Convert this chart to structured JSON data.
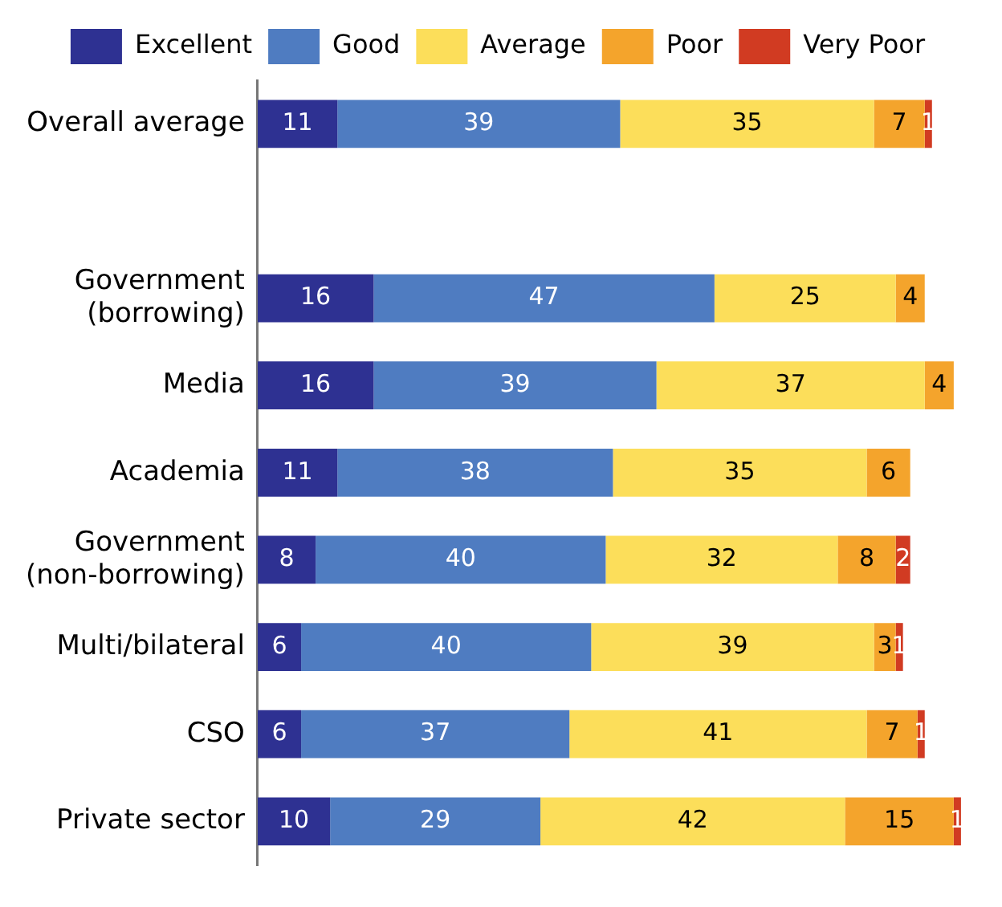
{
  "chart_data": {
    "type": "bar",
    "orientation": "horizontal",
    "stacked": true,
    "data_labels": true,
    "legend": "top",
    "grid": false,
    "tick_labels": "y",
    "categories": [
      "Overall average",
      null,
      "Government\n(borrowing)",
      "Media",
      "Academia",
      "Government\n(non-borrowing)",
      "Multi/bilateral",
      "CSO",
      "Private sector"
    ],
    "series": [
      {
        "name": "Excellent",
        "color": "#2e3192",
        "values": [
          11,
          null,
          16,
          16,
          11,
          8,
          6,
          6,
          10
        ]
      },
      {
        "name": "Good",
        "color": "#4f7cc1",
        "values": [
          39,
          null,
          47,
          39,
          38,
          40,
          40,
          37,
          29
        ]
      },
      {
        "name": "Average",
        "color": "#fcde5a",
        "values": [
          35,
          null,
          25,
          37,
          35,
          32,
          39,
          41,
          42
        ]
      },
      {
        "name": "Poor",
        "color": "#f4a42c",
        "values": [
          7,
          null,
          4,
          4,
          6,
          8,
          3,
          7,
          15
        ]
      },
      {
        "name": "Very Poor",
        "color": "#d13b22",
        "values": [
          1,
          null,
          null,
          null,
          null,
          2,
          1,
          1,
          1
        ]
      }
    ]
  }
}
